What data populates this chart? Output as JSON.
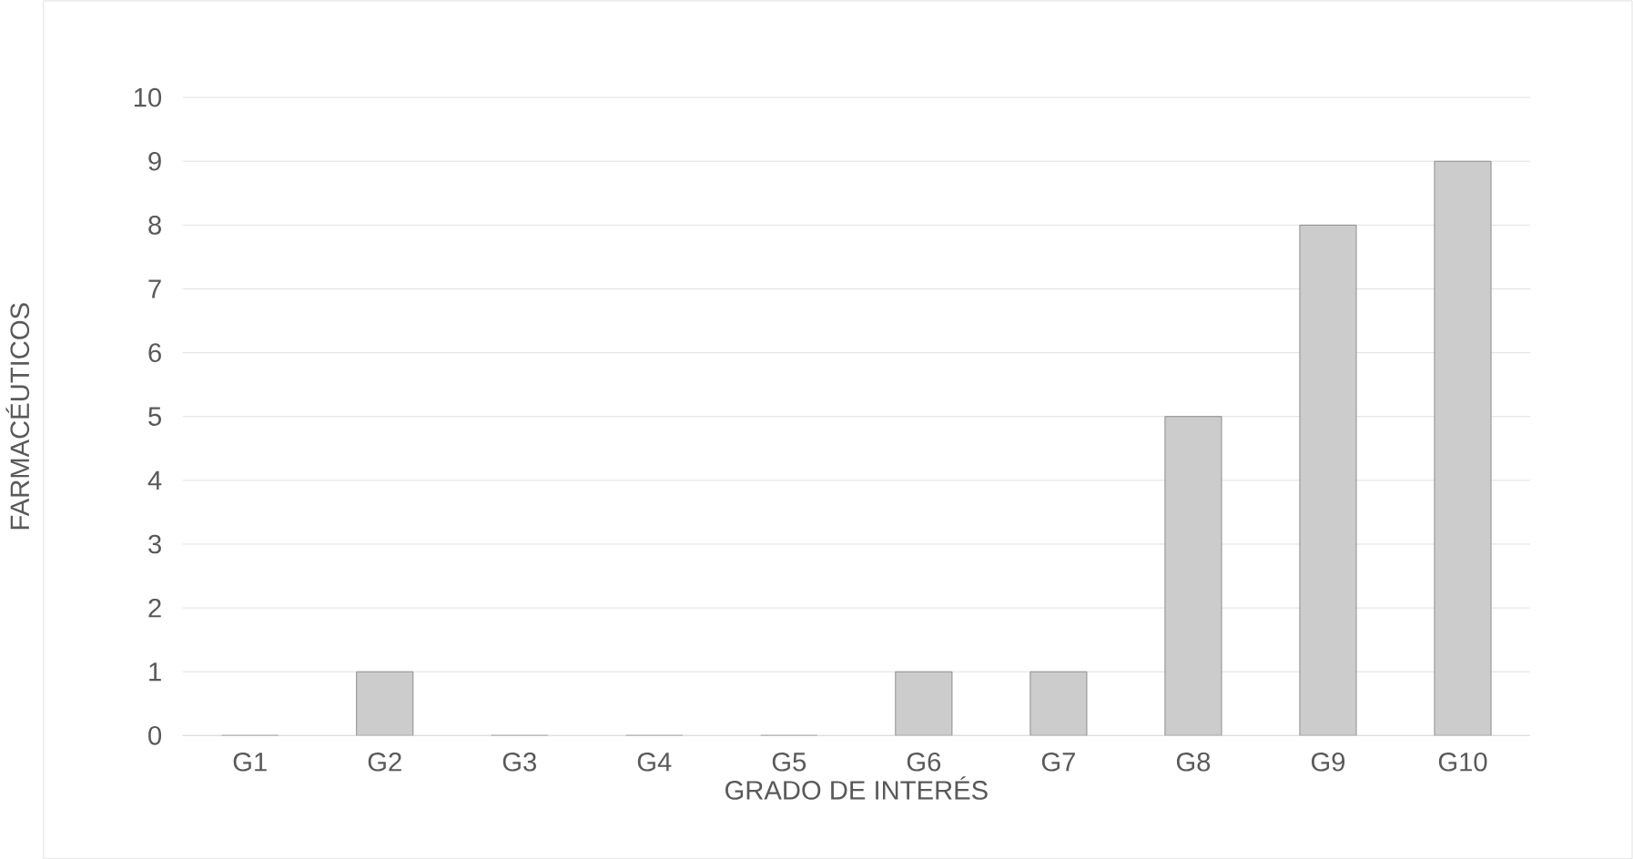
{
  "chart_data": {
    "type": "bar",
    "xlabel": "GRADO DE INTERÉS",
    "ylabel": "FARMACÉUTICOS",
    "categories": [
      "G1",
      "G2",
      "G3",
      "G4",
      "G5",
      "G6",
      "G7",
      "G8",
      "G9",
      "G10"
    ],
    "values": [
      0,
      1,
      0,
      0,
      0,
      1,
      1,
      5,
      8,
      9
    ],
    "color": "#cccccc",
    "ylim": [
      0,
      10
    ],
    "yticks": [
      0,
      1,
      2,
      3,
      4,
      5,
      6,
      7,
      8,
      9,
      10
    ],
    "grid": "y"
  }
}
